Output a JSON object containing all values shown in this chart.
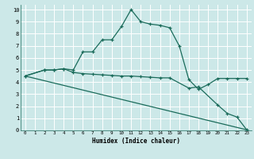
{
  "xlabel": "Humidex (Indice chaleur)",
  "bg_color": "#cce8e8",
  "line_color": "#1a6b5a",
  "grid_color": "#b0d0d0",
  "xlim": [
    -0.5,
    23.5
  ],
  "ylim": [
    0,
    10.4
  ],
  "xticks": [
    0,
    1,
    2,
    3,
    4,
    5,
    6,
    7,
    8,
    9,
    10,
    11,
    12,
    13,
    14,
    15,
    16,
    17,
    18,
    19,
    20,
    21,
    22,
    23
  ],
  "yticks": [
    0,
    1,
    2,
    3,
    4,
    5,
    6,
    7,
    8,
    9,
    10
  ],
  "curve1_x": [
    0,
    2,
    3,
    4,
    5,
    6,
    7,
    8,
    9,
    10,
    11,
    12,
    13,
    14,
    15,
    16,
    17,
    18,
    19,
    20,
    21,
    22,
    23
  ],
  "curve1_y": [
    4.5,
    5.0,
    5.0,
    5.1,
    5.0,
    6.5,
    6.5,
    7.5,
    7.5,
    8.6,
    10.0,
    9.0,
    8.8,
    8.7,
    8.5,
    7.0,
    4.2,
    3.4,
    3.8,
    4.3,
    4.3,
    4.3,
    4.3
  ],
  "curve2_x": [
    0,
    2,
    3,
    4,
    5,
    6,
    7,
    8,
    9,
    10,
    11,
    12,
    13,
    14,
    15,
    17,
    18,
    20,
    21,
    22,
    23
  ],
  "curve2_y": [
    4.5,
    5.0,
    5.0,
    5.1,
    4.8,
    4.7,
    4.65,
    4.6,
    4.55,
    4.5,
    4.5,
    4.45,
    4.4,
    4.35,
    4.35,
    3.5,
    3.6,
    2.1,
    1.4,
    1.1,
    0.05
  ],
  "curve3_x": [
    0,
    23
  ],
  "curve3_y": [
    4.5,
    0.05
  ]
}
